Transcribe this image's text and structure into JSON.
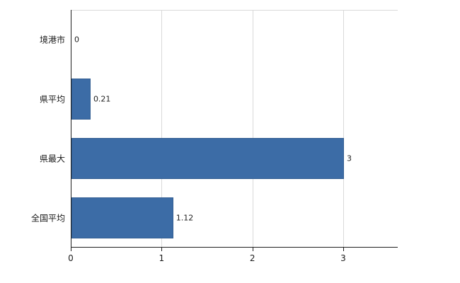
{
  "chart_data": {
    "type": "bar",
    "orientation": "horizontal",
    "categories": [
      "境港市",
      "県平均",
      "県最大",
      "全国平均"
    ],
    "values": [
      0,
      0.21,
      3,
      1.12
    ],
    "value_labels": [
      "0",
      "0.21",
      "3",
      "1.12"
    ],
    "xlim": [
      0,
      3.6
    ],
    "xticks": [
      0,
      1,
      2,
      3
    ],
    "xtick_labels": [
      "0",
      "1",
      "2",
      "3"
    ],
    "title": "",
    "xlabel": "",
    "ylabel": "",
    "grid": "vertical-gridlines-at-ticks",
    "legend": "none",
    "bar_color": "#3c6ca6",
    "bar_border_color": "#335e92",
    "axis_color": "#1f1f1f",
    "grid_color": "#d9d9d9",
    "label_color": "#1a1a1a",
    "background": "#ffffff"
  }
}
